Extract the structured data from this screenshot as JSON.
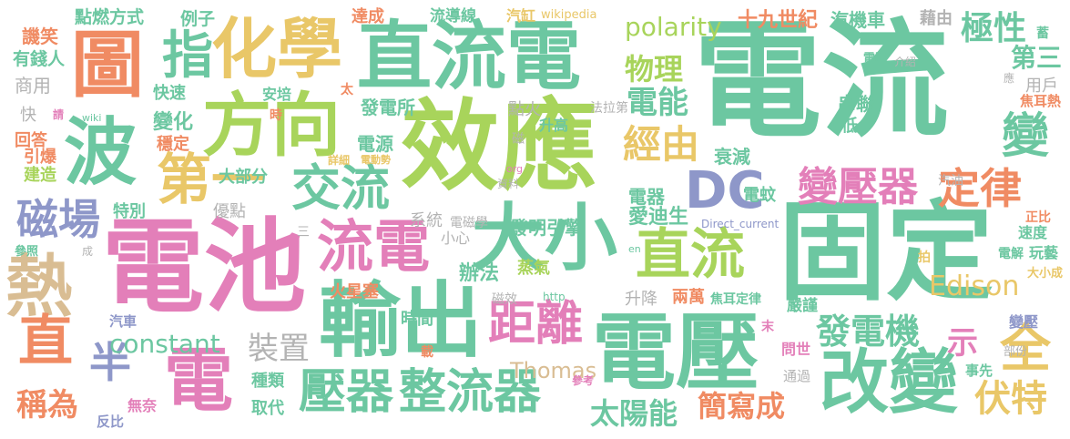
{
  "palette": {
    "teal": "#6cc7a1",
    "pink": "#e37fb9",
    "lime": "#a8d45b",
    "purple": "#8e97c9",
    "orange": "#f08b63",
    "gold": "#e9c768",
    "tan": "#d9bd93",
    "gray": "#b3b3b3"
  },
  "words": [
    {
      "id": "w1",
      "text": "電流",
      "color": "teal"
    },
    {
      "id": "w2",
      "text": "效應",
      "color": "lime"
    },
    {
      "id": "w3",
      "text": "電池",
      "color": "pink"
    },
    {
      "id": "w4",
      "text": "直流電",
      "color": "teal"
    },
    {
      "id": "w5",
      "text": "固定",
      "color": "teal"
    },
    {
      "id": "w6",
      "text": "電壓",
      "color": "teal"
    },
    {
      "id": "w7",
      "text": "輸出",
      "color": "teal"
    },
    {
      "id": "w8",
      "text": "方向",
      "color": "lime"
    },
    {
      "id": "w9",
      "text": "化學",
      "color": "gold"
    },
    {
      "id": "w10",
      "text": "大小",
      "color": "teal"
    },
    {
      "id": "w11",
      "text": "改變",
      "color": "teal"
    },
    {
      "id": "w12",
      "text": "波",
      "color": "teal"
    },
    {
      "id": "w13",
      "text": "圖",
      "color": "orange"
    },
    {
      "id": "w14",
      "text": "熱",
      "color": "tan"
    },
    {
      "id": "w15",
      "text": "電",
      "color": "pink"
    },
    {
      "id": "w16",
      "text": "DC",
      "color": "purple"
    },
    {
      "id": "w17",
      "text": "直流",
      "color": "lime"
    },
    {
      "id": "w18",
      "text": "流電",
      "color": "pink"
    },
    {
      "id": "w19",
      "text": "交流",
      "color": "teal"
    },
    {
      "id": "w20",
      "text": "第一",
      "color": "gold"
    },
    {
      "id": "w21",
      "text": "指",
      "color": "teal"
    },
    {
      "id": "w22",
      "text": "壓器",
      "color": "teal"
    },
    {
      "id": "w23",
      "text": "整流器",
      "color": "teal"
    },
    {
      "id": "w24",
      "text": "距離",
      "color": "pink"
    },
    {
      "id": "w25",
      "text": "磁場",
      "color": "purple"
    },
    {
      "id": "w26",
      "text": "直",
      "color": "orange"
    },
    {
      "id": "w27",
      "text": "半",
      "color": "purple"
    },
    {
      "id": "w28",
      "text": "全",
      "color": "gold"
    },
    {
      "id": "w29",
      "text": "伏特",
      "color": "gold"
    },
    {
      "id": "w30",
      "text": "變壓器",
      "color": "pink"
    },
    {
      "id": "w31",
      "text": "定律",
      "color": "orange"
    },
    {
      "id": "w32",
      "text": "經由",
      "color": "gold"
    },
    {
      "id": "w33",
      "text": "變",
      "color": "teal"
    },
    {
      "id": "w34",
      "text": "極性",
      "color": "teal"
    },
    {
      "id": "w35",
      "text": "第三",
      "color": "teal"
    },
    {
      "id": "w36",
      "text": "電能",
      "color": "teal"
    },
    {
      "id": "w37",
      "text": "物理",
      "color": "lime"
    },
    {
      "id": "w38",
      "text": "polarity",
      "color": "lime"
    },
    {
      "id": "w39",
      "text": "發電機",
      "color": "teal"
    },
    {
      "id": "w40",
      "text": "constant",
      "color": "teal"
    },
    {
      "id": "w41",
      "text": "Edison",
      "color": "gold"
    },
    {
      "id": "w42",
      "text": "Thomas",
      "color": "tan"
    },
    {
      "id": "w43",
      "text": "太陽能",
      "color": "teal"
    },
    {
      "id": "w44",
      "text": "簡寫成",
      "color": "orange"
    },
    {
      "id": "w45",
      "text": "裝置",
      "color": "gray"
    },
    {
      "id": "w46",
      "text": "稱為",
      "color": "orange"
    },
    {
      "id": "w47",
      "text": "示",
      "color": "pink"
    },
    {
      "id": "w48",
      "text": "愛迪生",
      "color": "teal"
    },
    {
      "id": "w49",
      "text": "十九世紀",
      "color": "orange"
    },
    {
      "id": "w50",
      "text": "汽機車",
      "color": "teal"
    },
    {
      "id": "w51",
      "text": "藉由",
      "color": "gray"
    },
    {
      "id": "w52",
      "text": "點燃方式",
      "color": "teal"
    },
    {
      "id": "w53",
      "text": "例子",
      "color": "teal"
    },
    {
      "id": "w54",
      "text": "達成",
      "color": "orange"
    },
    {
      "id": "w55",
      "text": "流導線",
      "color": "teal"
    },
    {
      "id": "w56",
      "text": "汽缸",
      "color": "gold"
    },
    {
      "id": "w57",
      "text": "wikipedia",
      "color": "gold"
    },
    {
      "id": "w58",
      "text": "譏笑",
      "color": "orange"
    },
    {
      "id": "w59",
      "text": "有錢人",
      "color": "teal"
    },
    {
      "id": "w60",
      "text": "商用",
      "color": "gray"
    },
    {
      "id": "w61",
      "text": "快",
      "color": "gray"
    },
    {
      "id": "w62",
      "text": "回答",
      "color": "orange"
    },
    {
      "id": "w63",
      "text": "引爆",
      "color": "orange"
    },
    {
      "id": "w64",
      "text": "建造",
      "color": "lime"
    },
    {
      "id": "w65",
      "text": "快速",
      "color": "teal"
    },
    {
      "id": "w66",
      "text": "變化",
      "color": "teal"
    },
    {
      "id": "w67",
      "text": "穩定",
      "color": "orange"
    },
    {
      "id": "w68",
      "text": "大部分",
      "color": "teal"
    },
    {
      "id": "w69",
      "text": "特別",
      "color": "teal"
    },
    {
      "id": "w70",
      "text": "優點",
      "color": "gray"
    },
    {
      "id": "w71",
      "text": "發電所",
      "color": "teal"
    },
    {
      "id": "w72",
      "text": "電源",
      "color": "teal"
    },
    {
      "id": "w73",
      "text": "點火",
      "color": "gray"
    },
    {
      "id": "w74",
      "text": "升高",
      "color": "teal"
    },
    {
      "id": "w75",
      "text": "法拉第",
      "color": "gray"
    },
    {
      "id": "w76",
      "text": "衰減",
      "color": "teal"
    },
    {
      "id": "w77",
      "text": "安培",
      "color": "teal"
    },
    {
      "id": "w78",
      "text": "串聯",
      "color": "teal"
    },
    {
      "id": "w79",
      "text": "用戶",
      "color": "gray"
    },
    {
      "id": "w80",
      "text": "低",
      "color": "teal"
    },
    {
      "id": "w81",
      "text": "電器",
      "color": "teal"
    },
    {
      "id": "w82",
      "text": "電蚊",
      "color": "teal"
    },
    {
      "id": "w83",
      "text": "系統",
      "color": "gray"
    },
    {
      "id": "w84",
      "text": "電磁學",
      "color": "gray"
    },
    {
      "id": "w85",
      "text": "發明引擎",
      "color": "teal"
    },
    {
      "id": "w86",
      "text": "小心",
      "color": "gray"
    },
    {
      "id": "w87",
      "text": "辦法",
      "color": "teal"
    },
    {
      "id": "w88",
      "text": "蒸氣",
      "color": "lime"
    },
    {
      "id": "w89",
      "text": "火星塞",
      "color": "orange"
    },
    {
      "id": "w90",
      "text": "時間",
      "color": "teal"
    },
    {
      "id": "w91",
      "text": "升降",
      "color": "gray"
    },
    {
      "id": "w92",
      "text": "兩萬",
      "color": "orange"
    },
    {
      "id": "w93",
      "text": "焦耳定律",
      "color": "teal"
    },
    {
      "id": "w94",
      "text": "種類",
      "color": "teal"
    },
    {
      "id": "w95",
      "text": "取代",
      "color": "teal"
    },
    {
      "id": "w96",
      "text": "汽車",
      "color": "purple"
    },
    {
      "id": "w97",
      "text": "無奈",
      "color": "pink"
    },
    {
      "id": "w98",
      "text": "反比",
      "color": "purple"
    },
    {
      "id": "w99",
      "text": "嚴謹",
      "color": "teal"
    },
    {
      "id": "w100",
      "text": "問世",
      "color": "pink"
    },
    {
      "id": "w101",
      "text": "通過",
      "color": "gray"
    },
    {
      "id": "w102",
      "text": "事先",
      "color": "teal"
    },
    {
      "id": "w103",
      "text": "部份",
      "color": "gray"
    },
    {
      "id": "w104",
      "text": "變壓",
      "color": "purple"
    },
    {
      "id": "w105",
      "text": "電解",
      "color": "teal"
    },
    {
      "id": "w106",
      "text": "正比",
      "color": "orange"
    },
    {
      "id": "w107",
      "text": "速度",
      "color": "teal"
    },
    {
      "id": "w108",
      "text": "玩藝",
      "color": "teal"
    },
    {
      "id": "w109",
      "text": "大小成",
      "color": "gold"
    },
    {
      "id": "w110",
      "text": "汽油",
      "color": "gray"
    },
    {
      "id": "w111",
      "text": "焦耳熱",
      "color": "orange"
    },
    {
      "id": "w112",
      "text": "電阻",
      "color": "teal"
    },
    {
      "id": "w113",
      "text": "介紹",
      "color": "gray"
    },
    {
      "id": "w114",
      "text": "Direct_current",
      "color": "purple"
    },
    {
      "id": "w115",
      "text": "wiki",
      "color": "teal"
    },
    {
      "id": "w116",
      "text": "http",
      "color": "teal"
    },
    {
      "id": "w117",
      "text": "en",
      "color": "teal"
    },
    {
      "id": "w118",
      "text": "org",
      "color": "pink"
    },
    {
      "id": "w119",
      "text": "資料",
      "color": "gray"
    },
    {
      "id": "w120",
      "text": "詳細",
      "color": "gold"
    },
    {
      "id": "w121",
      "text": "電動勢",
      "color": "gold"
    },
    {
      "id": "w122",
      "text": "磁效",
      "color": "gray"
    },
    {
      "id": "w123",
      "text": "參考",
      "color": "pink"
    },
    {
      "id": "w124",
      "text": "參照",
      "color": "teal"
    },
    {
      "id": "w125",
      "text": "成",
      "color": "gray"
    },
    {
      "id": "w126",
      "text": "三",
      "color": "gray"
    },
    {
      "id": "w127",
      "text": "時",
      "color": "orange"
    },
    {
      "id": "w128",
      "text": "太",
      "color": "orange"
    },
    {
      "id": "w129",
      "text": "請",
      "color": "pink"
    },
    {
      "id": "w130",
      "text": "末",
      "color": "pink"
    },
    {
      "id": "w131",
      "text": "載",
      "color": "orange"
    },
    {
      "id": "w132",
      "text": "拍",
      "color": "gold"
    },
    {
      "id": "w133",
      "text": "蓄",
      "color": "teal"
    },
    {
      "id": "w134",
      "text": "應",
      "color": "gray"
    },
    {
      "id": "w135",
      "text": "磁",
      "color": "gray"
    }
  ]
}
